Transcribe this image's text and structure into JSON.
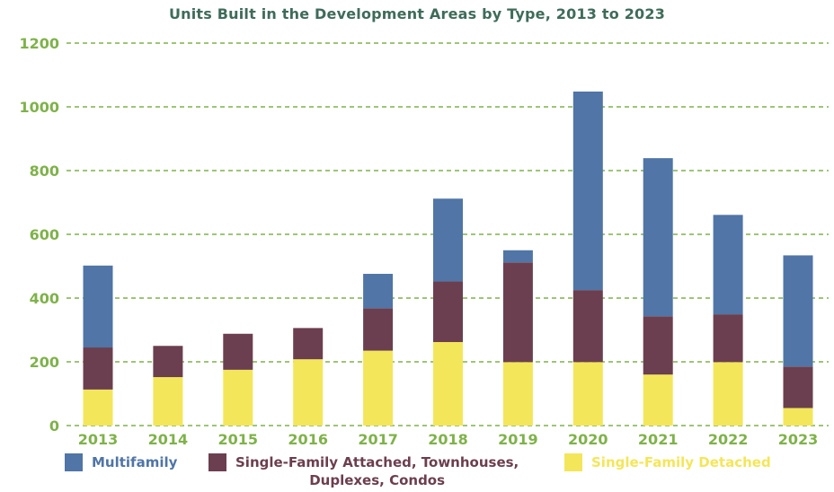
{
  "chart_data": {
    "type": "bar",
    "stacked": true,
    "title": "Units Built in the Development Areas by Type, 2013 to 2023",
    "xlabel": "",
    "ylabel": "",
    "ylim": [
      0,
      1200
    ],
    "yticks": [
      0,
      200,
      400,
      600,
      800,
      1000,
      1200
    ],
    "ytick_labels": [
      "0",
      "200",
      "400",
      "600",
      "800",
      "1000",
      "1200"
    ],
    "grid": "horizontal dashed",
    "legend_position": "bottom",
    "categories": [
      "2013",
      "2014",
      "2015",
      "2016",
      "2017",
      "2018",
      "2019",
      "2020",
      "2021",
      "2022",
      "2023"
    ],
    "series": [
      {
        "name": "Single-Family Detached",
        "color": "#f4e65a",
        "values": [
          113,
          152,
          175,
          208,
          235,
          262,
          199,
          199,
          160,
          199,
          55
        ]
      },
      {
        "name": "Single-Family Attached, Townhouses, Duplexes, Condos",
        "color": "#6b3f4f",
        "values": [
          132,
          98,
          113,
          98,
          133,
          190,
          313,
          226,
          183,
          150,
          130
        ]
      },
      {
        "name": "Multifamily",
        "color": "#5075a6",
        "values": [
          257,
          0,
          0,
          0,
          108,
          260,
          38,
          623,
          496,
          312,
          349
        ]
      }
    ],
    "colors": {
      "title": "#3f6b5a",
      "axis_labels": "#7fb24a",
      "grid": "#7fb24a"
    }
  },
  "legend": [
    {
      "key": "multifamily",
      "label": "Multifamily",
      "color": "#5075a6"
    },
    {
      "key": "attached",
      "label_line1": "Single-Family Attached, Townhouses,",
      "label_line2": "Duplexes, Condos",
      "color": "#6b3f4f"
    },
    {
      "key": "detached",
      "label": "Single-Family Detached",
      "color": "#f4e65a"
    }
  ]
}
